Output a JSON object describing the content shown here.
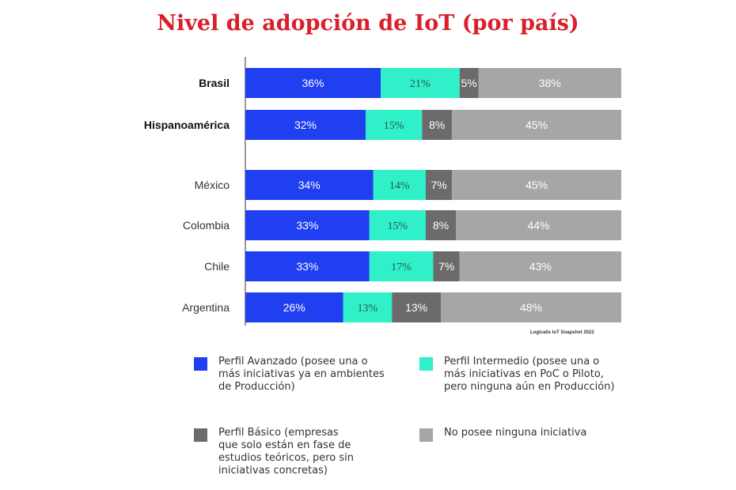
{
  "chart_data": {
    "type": "bar",
    "orientation": "horizontal",
    "stacked": true,
    "title": "Nivel de adopción de IoT (por país)",
    "xlim": [
      0,
      100
    ],
    "categories": [
      "Brasil",
      "Hispanoamérica",
      "México",
      "Colombia",
      "Chile",
      "Argentina"
    ],
    "bold_categories": [
      "Brasil",
      "Hispanoamérica"
    ],
    "series": [
      {
        "key": "avanzado",
        "values": [
          36,
          32,
          34,
          33,
          33,
          26
        ],
        "color": "#1f3ff0",
        "label_color": "#ffffff"
      },
      {
        "key": "intermedio",
        "values": [
          21,
          15,
          14,
          15,
          17,
          13
        ],
        "color": "#2ff0c8",
        "label_color": "#2a5a52"
      },
      {
        "key": "basico",
        "values": [
          5,
          8,
          7,
          8,
          7,
          13
        ],
        "color": "#6b6b6b",
        "label_color": "#ffffff"
      },
      {
        "key": "ninguna",
        "values": [
          38,
          45,
          45,
          44,
          43,
          48
        ],
        "color": "#a6a6a6",
        "label_color": "#ffffff"
      }
    ],
    "labels": [
      [
        "36%",
        "21%",
        "5%",
        "38%"
      ],
      [
        "32%",
        "15%",
        "8%",
        "45%"
      ],
      [
        "34%",
        "14%",
        "7%",
        "45%"
      ],
      [
        "33%",
        "15%",
        "8%",
        "44%"
      ],
      [
        "33%",
        "17%",
        "7%",
        "43%"
      ],
      [
        "26%",
        "13%",
        "13%",
        "48%"
      ]
    ],
    "legend": [
      {
        "key": "avanzado",
        "label": "Perfil Avanzado (posee una o\nmás iniciativas ya en ambientes\nde Producción)",
        "color": "#1f3ff0"
      },
      {
        "key": "intermedio",
        "label": "Perfil Intermedio (posee una o\nmás iniciativas en PoC o Piloto,\npero ninguna aún en Producción)",
        "color": "#2ff0c8"
      },
      {
        "key": "basico",
        "label": "Perfil Básico (empresas\nque solo están en fase de\nestudios teóricos, pero sin\niniciativas concretas)",
        "color": "#6b6b6b"
      },
      {
        "key": "ninguna",
        "label": "No posee ninguna iniciativa",
        "color": "#a6a6a6"
      }
    ],
    "source": "Logicalis IoT Snapshot 2022",
    "grid": false,
    "legend_position": "bottom"
  }
}
